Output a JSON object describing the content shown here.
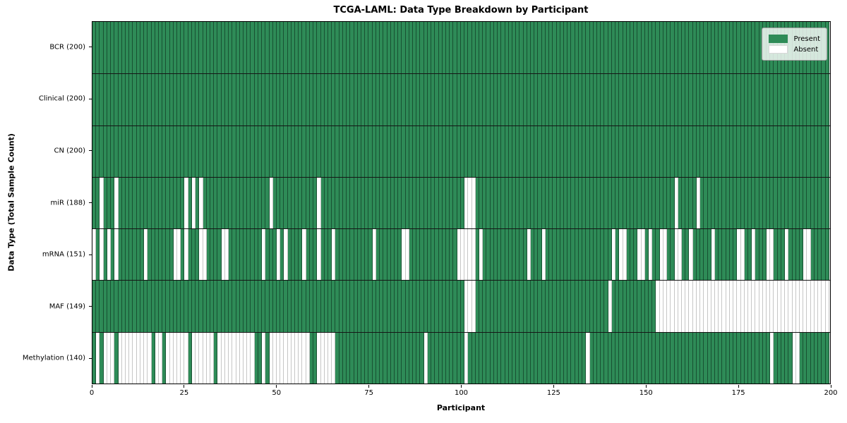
{
  "title": "TCGA-LAML: Data Type Breakdown by Participant",
  "legend": {
    "present_label": "Present",
    "absent_label": "Absent"
  },
  "colors": {
    "present": "#2e8b57",
    "absent": "#ffffff",
    "row_separator": "#151515",
    "plot_border": "#000000"
  },
  "chart_data": {
    "type": "heatmap",
    "title": "TCGA-LAML: Data Type Breakdown by Participant",
    "xlabel": "Participant",
    "ylabel": "Data Type (Total Sample Count)",
    "x_range": [
      0,
      200
    ],
    "x_ticks": [
      0,
      25,
      50,
      75,
      100,
      125,
      150,
      175,
      200
    ],
    "participants": 200,
    "grid": "per-cell vertical edges, solid row separators",
    "legend_position": "upper right",
    "legend": [
      {
        "label": "Present",
        "color": "#2e8b57"
      },
      {
        "label": "Absent",
        "color": "#ffffff"
      }
    ],
    "rows": [
      {
        "name": "BCR",
        "label": "BCR (200)",
        "present_count": 200,
        "absent_participants": []
      },
      {
        "name": "Clinical",
        "label": "Clinical (200)",
        "present_count": 200,
        "absent_participants": []
      },
      {
        "name": "CN",
        "label": "CN (200)",
        "present_count": 200,
        "absent_participants": []
      },
      {
        "name": "miR",
        "label": "miR (188)",
        "present_count": 188,
        "absent_participants": [
          2,
          6,
          25,
          27,
          29,
          48,
          61,
          101,
          102,
          103,
          158,
          164
        ]
      },
      {
        "name": "mRNA",
        "label": "mRNA (151)",
        "present_count": 151,
        "absent_participants": [
          0,
          2,
          4,
          6,
          14,
          22,
          23,
          25,
          29,
          30,
          35,
          36,
          46,
          50,
          52,
          57,
          61,
          65,
          76,
          84,
          85,
          99,
          100,
          101,
          102,
          103,
          105,
          118,
          122,
          141,
          143,
          144,
          148,
          149,
          151,
          154,
          155,
          158,
          159,
          162,
          168,
          175,
          176,
          179,
          183,
          184,
          188,
          193,
          194
        ]
      },
      {
        "name": "MAF",
        "label": "MAF (149)",
        "present_count": 149,
        "absent_participants": [
          101,
          102,
          103,
          140,
          153,
          154,
          155,
          156,
          157,
          158,
          159,
          160,
          161,
          162,
          163,
          164,
          165,
          166,
          167,
          168,
          169,
          170,
          171,
          172,
          173,
          174,
          175,
          176,
          177,
          178,
          179,
          180,
          181,
          182,
          183,
          184,
          185,
          186,
          187,
          188,
          189,
          190,
          191,
          192,
          193,
          194,
          195,
          196,
          197,
          198,
          199
        ]
      },
      {
        "name": "Methylation",
        "label": "Methylation (140)",
        "present_count": 140,
        "absent_participants": [
          1,
          3,
          4,
          5,
          7,
          8,
          9,
          10,
          11,
          12,
          13,
          14,
          15,
          17,
          18,
          20,
          21,
          22,
          23,
          24,
          25,
          27,
          28,
          29,
          30,
          31,
          32,
          34,
          35,
          36,
          37,
          38,
          39,
          40,
          41,
          42,
          43,
          46,
          48,
          49,
          50,
          51,
          52,
          53,
          54,
          55,
          56,
          57,
          58,
          61,
          62,
          63,
          64,
          65,
          90,
          101,
          134,
          184,
          190,
          191
        ]
      }
    ]
  }
}
